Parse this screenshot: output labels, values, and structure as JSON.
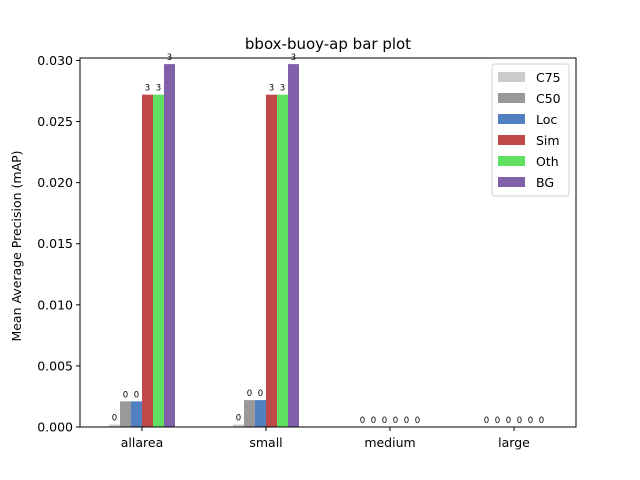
{
  "chart_data": {
    "type": "bar",
    "title": "bbox-buoy-ap bar plot",
    "xlabel": "",
    "ylabel": "Mean Average Precision (mAP)",
    "categories": [
      "allarea",
      "small",
      "medium",
      "large"
    ],
    "ylim": [
      0,
      0.0302
    ],
    "yticks": [
      "0.000",
      "0.005",
      "0.010",
      "0.015",
      "0.020",
      "0.025",
      "0.030"
    ],
    "grid": false,
    "legend_position": "top-right",
    "series": [
      {
        "name": "C75",
        "color": "#cccccc",
        "values": [
          0.0002,
          0.0002,
          0,
          0
        ],
        "labels": [
          "0",
          "0",
          "0",
          "0"
        ]
      },
      {
        "name": "C50",
        "color": "#999999",
        "values": [
          0.0021,
          0.0022,
          0,
          0
        ],
        "labels": [
          "0",
          "0",
          "0",
          "0"
        ]
      },
      {
        "name": "Loc",
        "color": "#5080c0",
        "values": [
          0.0021,
          0.0022,
          0,
          0
        ],
        "labels": [
          "0",
          "0",
          "0",
          "0"
        ]
      },
      {
        "name": "Sim",
        "color": "#c04848",
        "values": [
          0.0272,
          0.0272,
          0,
          0
        ],
        "labels": [
          "3",
          "3",
          "0",
          "0"
        ]
      },
      {
        "name": "Oth",
        "color": "#60e060",
        "values": [
          0.0272,
          0.0272,
          0,
          0
        ],
        "labels": [
          "3",
          "3",
          "0",
          "0"
        ]
      },
      {
        "name": "BG",
        "color": "#8060a8",
        "values": [
          0.0297,
          0.0297,
          0,
          0
        ],
        "labels": [
          "3",
          "3",
          "0",
          "0"
        ]
      }
    ]
  }
}
